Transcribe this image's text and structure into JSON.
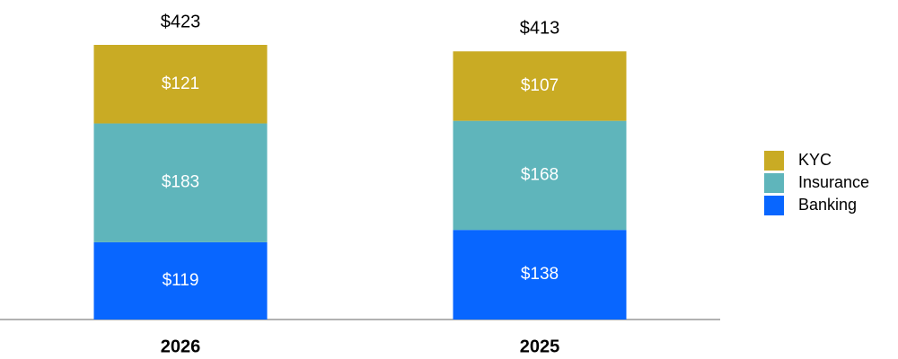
{
  "chart_data": {
    "type": "stacked-bar",
    "categories": [
      "2026",
      "2025"
    ],
    "series": [
      {
        "name": "Banking",
        "color": "#0866ff",
        "values": [
          119,
          138
        ],
        "value_labels": [
          "$119",
          "$138"
        ]
      },
      {
        "name": "Insurance",
        "color": "#5fb5bb",
        "values": [
          183,
          168
        ],
        "value_labels": [
          "$183",
          "$168"
        ]
      },
      {
        "name": "KYC",
        "color": "#c9ab24",
        "values": [
          121,
          107
        ],
        "value_labels": [
          "$121",
          "$107"
        ]
      }
    ],
    "totals": [
      423,
      413
    ],
    "total_labels": [
      "$423",
      "$413"
    ]
  }
}
